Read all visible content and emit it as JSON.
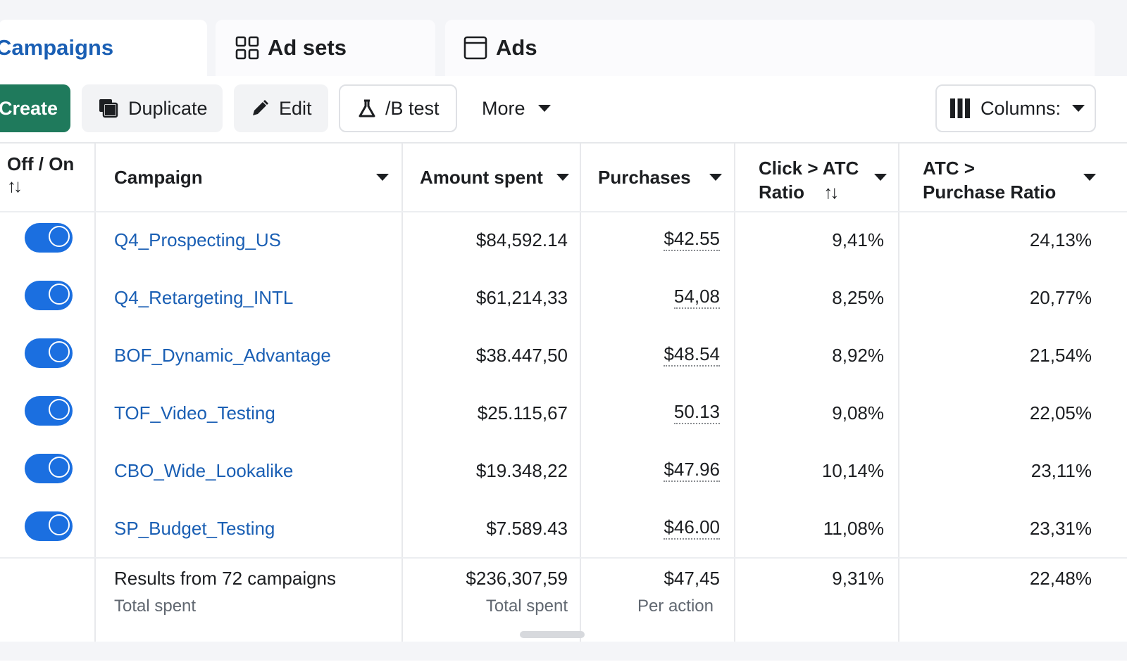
{
  "tabs": [
    {
      "label": "Campaigns",
      "icon": "campaigns-icon",
      "active": true
    },
    {
      "label": "Ad sets",
      "icon": "grid-icon",
      "active": false
    },
    {
      "label": "Ads",
      "icon": "ad-square-icon",
      "active": false
    }
  ],
  "toolbar": {
    "create_label": "Create",
    "duplicate_label": "Duplicate",
    "edit_label": "Edit",
    "abtest_label": "/B test",
    "more_label": "More",
    "columns_label": "Columns:"
  },
  "table": {
    "headers": {
      "off_on": "Off / On",
      "campaign": "Campaign",
      "amount_spent": "Amount spent",
      "purchases": "Purchases",
      "click_atc_line1": "Click > ATC",
      "click_atc_line2": "Ratio",
      "atc_purchase_line1": "ATC >",
      "atc_purchase_line2": "Purchase Ratio"
    },
    "sort_glyph": "↑↓",
    "rows": [
      {
        "name": "Q4_Prospecting_US",
        "amount": "$84,592.14",
        "purchases": "$42.55",
        "click_atc": "9,41%",
        "atc_purchase": "24,13%"
      },
      {
        "name": "Q4_Retargeting_INTL",
        "amount": "$61,214,33",
        "purchases": "54,08",
        "click_atc": "8,25%",
        "atc_purchase": "20,77%"
      },
      {
        "name": "BOF_Dynamic_Advantage",
        "amount": "$38.447,50",
        "purchases": "$48.54",
        "click_atc": "8,92%",
        "atc_purchase": "21,54%"
      },
      {
        "name": "TOF_Video_Testing",
        "amount": "$25.115,67",
        "purchases": "50.13",
        "click_atc": "9,08%",
        "atc_purchase": "22,05%"
      },
      {
        "name": "CBO_Wide_Lookalike",
        "amount": "$19.348,22",
        "purchases": "$47.96",
        "click_atc": "10,14%",
        "atc_purchase": "23,11%"
      },
      {
        "name": "SP_Budget_Testing",
        "amount": "$7.589.43",
        "purchases": "$46.00",
        "click_atc": "11,08%",
        "atc_purchase": "23,31%"
      }
    ],
    "summary": {
      "title": "Results from 72 campaigns",
      "title_sub": "Total spent",
      "amount": "$236,307,59",
      "amount_sub": "Total spent",
      "purchases": "$47,45",
      "purchases_sub": "Per action",
      "click_atc": "9,31%",
      "atc_purchase": "22,48%"
    }
  },
  "colors": {
    "accent_blue": "#1a5fb4",
    "toggle_blue": "#1b6fe0",
    "create_green": "#1f7a5c"
  }
}
